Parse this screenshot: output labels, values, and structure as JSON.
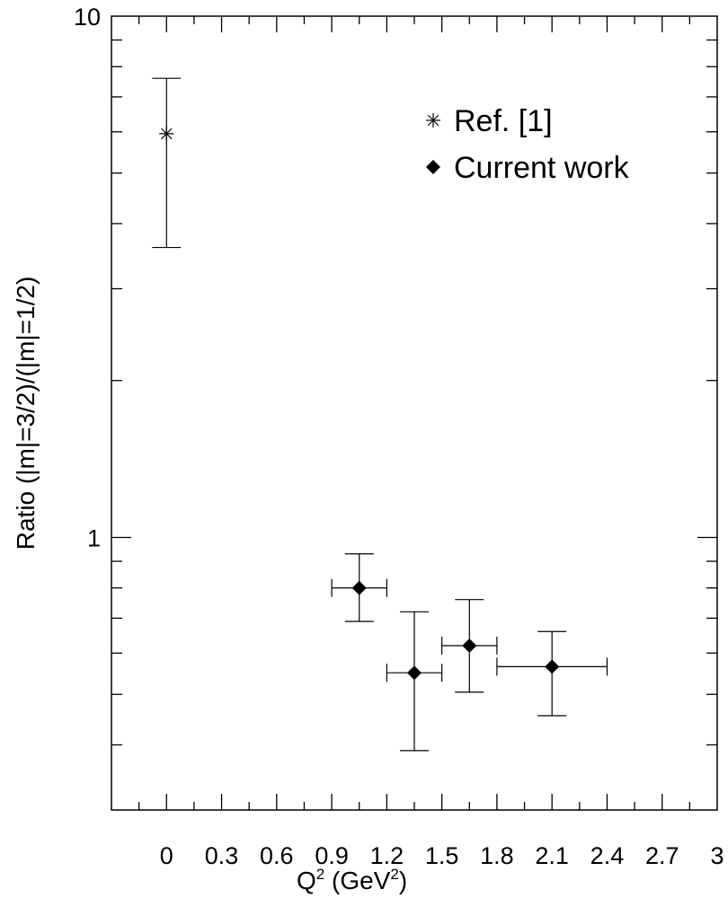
{
  "chart_data": {
    "type": "scatter",
    "xlabel": "Q² (GeV²)",
    "ylabel": "Ratio (|m|=3/2)/(|m|=1/2)",
    "xlim": [
      -0.3,
      3.0
    ],
    "ylim": [
      0.3,
      10
    ],
    "yscale": "log",
    "x_ticks": [
      0,
      0.3,
      0.6,
      0.9,
      1.2,
      1.5,
      1.8,
      2.1,
      2.4,
      2.7,
      3
    ],
    "y_tick_labels": [
      1,
      10
    ],
    "grid": false,
    "legend_position": "top-right",
    "series": [
      {
        "name": "Ref. [1]",
        "marker": "asterisk",
        "points": [
          {
            "x": 0.0,
            "y": 5.95,
            "y_low": 3.6,
            "y_high": 7.6
          }
        ]
      },
      {
        "name": "Current work",
        "marker": "diamond",
        "points": [
          {
            "x": 1.05,
            "y": 0.8,
            "x_low": 0.9,
            "x_high": 1.2,
            "y_low": 0.69,
            "y_high": 0.93
          },
          {
            "x": 1.35,
            "y": 0.55,
            "x_low": 1.2,
            "x_high": 1.5,
            "y_low": 0.39,
            "y_high": 0.72
          },
          {
            "x": 1.65,
            "y": 0.62,
            "x_low": 1.5,
            "x_high": 1.8,
            "y_low": 0.505,
            "y_high": 0.76
          },
          {
            "x": 2.1,
            "y": 0.565,
            "x_low": 1.8,
            "x_high": 2.4,
            "y_low": 0.455,
            "y_high": 0.66
          }
        ]
      }
    ]
  }
}
